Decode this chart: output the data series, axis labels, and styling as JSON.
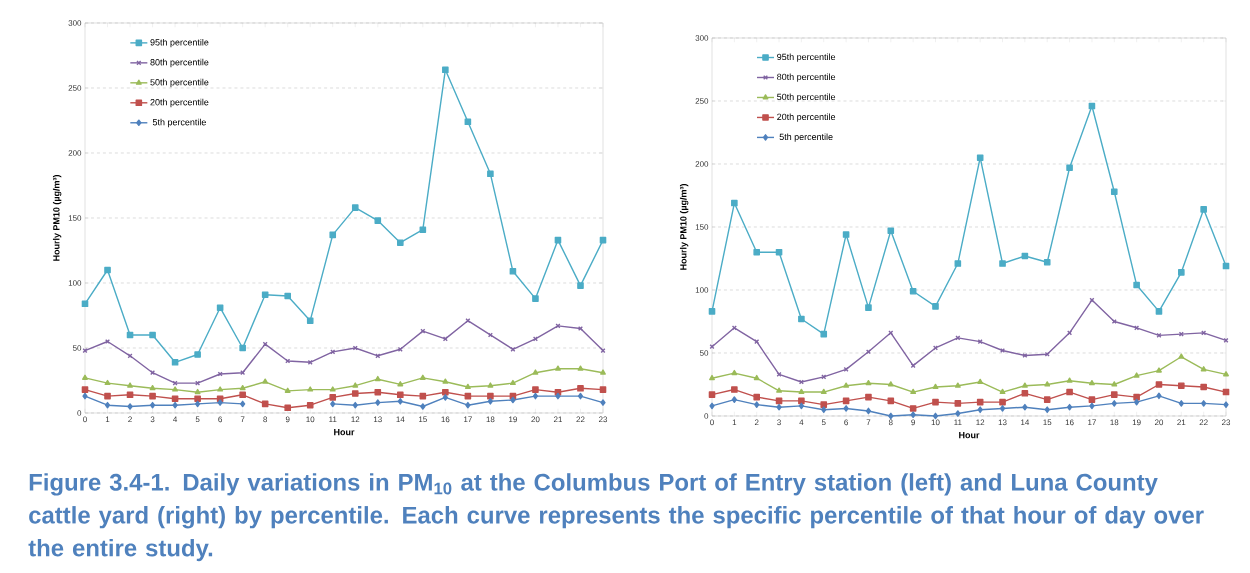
{
  "chart_data": [
    {
      "type": "line",
      "xlabel": "Hour",
      "ylabel": "Hourly PM10 (µg/m³)",
      "categories": [
        "0",
        "1",
        "2",
        "3",
        "4",
        "5",
        "6",
        "7",
        "8",
        "9",
        "10",
        "11",
        "12",
        "13",
        "14",
        "15",
        "16",
        "17",
        "18",
        "19",
        "20",
        "21",
        "22",
        "23"
      ],
      "ylim": [
        0,
        300
      ],
      "yticks": [
        0,
        50,
        100,
        150,
        200,
        250,
        300
      ],
      "grid": "y",
      "legend": "top left",
      "line_style": "solid",
      "annotations": [
        "Figure 3.4-1. Daily variations in PM$_{10}$ at the Columbus Port of Entry station (left) and Luna County cattle yard (right) by percentile. Each curve represents the specific percentile of that hour of day over the entire study."
      ],
      "series": [
        {
          "name": "95th percentile",
          "color": "#4bacc6",
          "marker": "square",
          "values": [
            84,
            110,
            60,
            60,
            39,
            45,
            81,
            50,
            91,
            90,
            71,
            137,
            158,
            148,
            131,
            141,
            264,
            224,
            184,
            109,
            88,
            133,
            98,
            133
          ]
        },
        {
          "name": "80th percentile",
          "color": "#8064a2",
          "marker": "cross",
          "values": [
            48,
            55,
            44,
            31,
            23,
            23,
            30,
            31,
            53,
            40,
            39,
            47,
            50,
            44,
            49,
            63,
            57,
            71,
            60,
            49,
            57,
            67,
            65,
            48
          ]
        },
        {
          "name": "50th percentile",
          "color": "#9bbb59",
          "marker": "triangle",
          "values": [
            27,
            23,
            21,
            19,
            18,
            16,
            18,
            19,
            24,
            17,
            18,
            18,
            21,
            26,
            22,
            27,
            24,
            20,
            21,
            23,
            31,
            34,
            34,
            31
          ]
        },
        {
          "name": "20th percentile",
          "color": "#c0504d",
          "marker": "square",
          "values": [
            18,
            13,
            14,
            13,
            11,
            11,
            11,
            14,
            7,
            4,
            6,
            12,
            15,
            16,
            14,
            13,
            16,
            13,
            13,
            13,
            18,
            16,
            19,
            18
          ]
        },
        {
          "name": "5th percentile",
          "color": "#4f81bd",
          "marker": "diamond",
          "values": [
            13,
            6,
            5,
            6,
            6,
            7,
            8,
            7,
            null,
            null,
            null,
            7,
            6,
            8,
            9,
            5,
            12,
            6,
            9,
            10,
            13,
            13,
            13,
            8
          ]
        }
      ]
    },
    {
      "type": "line",
      "xlabel": "Hour",
      "ylabel": "Hourly PM10 (µg/m³)",
      "categories": [
        "0",
        "1",
        "2",
        "3",
        "4",
        "5",
        "6",
        "7",
        "8",
        "9",
        "10",
        "11",
        "12",
        "13",
        "14",
        "15",
        "16",
        "17",
        "18",
        "19",
        "20",
        "21",
        "22",
        "23"
      ],
      "ylim": [
        0,
        300
      ],
      "yticks": [
        0,
        50,
        100,
        150,
        200,
        250,
        300
      ],
      "grid": "y",
      "legend": "top left",
      "line_style": "solid",
      "series": [
        {
          "name": "95th percentile",
          "color": "#4bacc6",
          "marker": "square",
          "values": [
            83,
            169,
            130,
            130,
            77,
            65,
            144,
            86,
            147,
            99,
            87,
            121,
            205,
            121,
            127,
            122,
            197,
            246,
            178,
            104,
            83,
            114,
            164,
            119
          ]
        },
        {
          "name": "80th percentile",
          "color": "#8064a2",
          "marker": "cross",
          "values": [
            55,
            70,
            59,
            33,
            27,
            31,
            37,
            51,
            66,
            40,
            54,
            62,
            59,
            52,
            48,
            49,
            66,
            92,
            75,
            70,
            64,
            65,
            66,
            60
          ]
        },
        {
          "name": "50th percentile",
          "color": "#9bbb59",
          "marker": "triangle",
          "values": [
            30,
            34,
            30,
            20,
            19,
            19,
            24,
            26,
            25,
            19,
            23,
            24,
            27,
            19,
            24,
            25,
            28,
            26,
            25,
            32,
            36,
            47,
            37,
            33
          ]
        },
        {
          "name": "20th percentile",
          "color": "#c0504d",
          "marker": "square",
          "values": [
            17,
            21,
            15,
            12,
            12,
            9,
            12,
            15,
            12,
            6,
            11,
            10,
            11,
            11,
            18,
            13,
            19,
            13,
            17,
            15,
            25,
            24,
            23,
            19
          ]
        },
        {
          "name": "5th percentile",
          "color": "#4f81bd",
          "marker": "diamond",
          "values": [
            8,
            13,
            9,
            7,
            8,
            5,
            6,
            4,
            0,
            1,
            0,
            2,
            5,
            6,
            7,
            5,
            7,
            8,
            10,
            11,
            16,
            10,
            10,
            9
          ]
        }
      ]
    }
  ]
}
